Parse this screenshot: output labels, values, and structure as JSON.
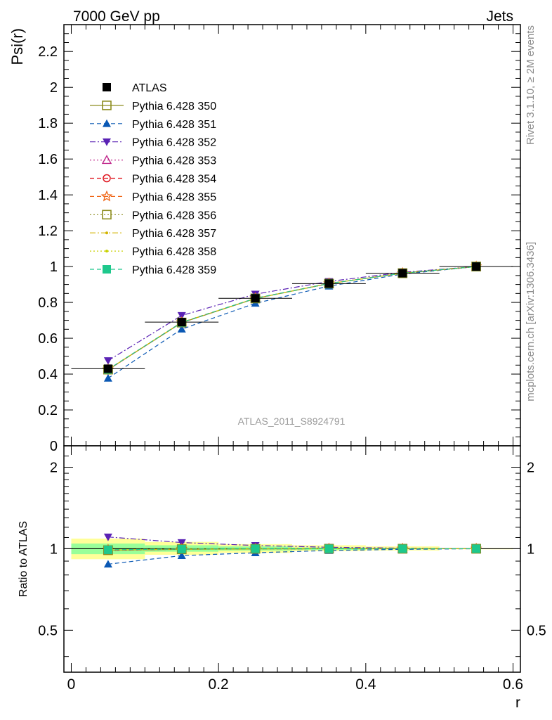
{
  "header": {
    "left": "7000 GeV pp",
    "right": "Jets"
  },
  "side_text": {
    "top": "Rivet 3.1.10, ≥ 2M events",
    "bottom": "mcplots.cern.ch [arXiv:1306.3436]"
  },
  "chart_data": [
    {
      "type": "line",
      "ylabel": "Psi(r)",
      "xlabel": "r",
      "analysis_label": "ATLAS_2011_S8924791",
      "xlim": [
        -0.01,
        0.61
      ],
      "ylim": [
        0,
        2.35
      ],
      "xticks": [
        "0",
        "0.2",
        "0.4",
        "0.6"
      ],
      "yticks": [
        "0",
        "0.2",
        "0.4",
        "0.6",
        "0.8",
        "1",
        "1.2",
        "1.4",
        "1.6",
        "1.8",
        "2",
        "2.2"
      ],
      "x": [
        0.05,
        0.15,
        0.25,
        0.35,
        0.45,
        0.55
      ],
      "series": [
        {
          "name": "ATLAS",
          "color": "#000000",
          "marker": "filled-square",
          "values": [
            0.43,
            0.69,
            0.823,
            0.905,
            0.963,
            1.0
          ]
        },
        {
          "name": "Pythia 6.428 350",
          "color": "#8c8c1e",
          "marker": "open-square",
          "dash": "solid",
          "values": [
            0.425,
            0.687,
            0.822,
            0.905,
            0.963,
            1.0
          ]
        },
        {
          "name": "Pythia 6.428 351",
          "color": "#0a58b4",
          "marker": "triangle-up",
          "dash": "dashed",
          "values": [
            0.377,
            0.651,
            0.795,
            0.891,
            0.958,
            1.0
          ]
        },
        {
          "name": "Pythia 6.428 352",
          "color": "#5a22b4",
          "marker": "triangle-down",
          "dash": "dashdot",
          "values": [
            0.475,
            0.727,
            0.846,
            0.917,
            0.968,
            1.0
          ]
        },
        {
          "name": "Pythia 6.428 353",
          "color": "#c0288c",
          "marker": "open-triangle",
          "dash": "dotted",
          "values": [
            0.424,
            0.687,
            0.822,
            0.905,
            0.963,
            1.0
          ]
        },
        {
          "name": "Pythia 6.428 354",
          "color": "#e0141e",
          "marker": "open-circle",
          "dash": "dashed",
          "values": [
            0.424,
            0.688,
            0.822,
            0.905,
            0.963,
            1.0
          ]
        },
        {
          "name": "Pythia 6.428 355",
          "color": "#f06414",
          "marker": "open-star",
          "dash": "dashed",
          "values": [
            0.426,
            0.689,
            0.823,
            0.906,
            0.963,
            1.0
          ]
        },
        {
          "name": "Pythia 6.428 356",
          "color": "#8c8c1e",
          "marker": "open-square",
          "dash": "dotted",
          "values": [
            0.425,
            0.688,
            0.822,
            0.905,
            0.963,
            1.0
          ]
        },
        {
          "name": "Pythia 6.428 357",
          "color": "#d2b400",
          "marker": "small-dot",
          "dash": "dashdot",
          "values": [
            0.425,
            0.688,
            0.822,
            0.905,
            0.963,
            1.0
          ]
        },
        {
          "name": "Pythia 6.428 358",
          "color": "#c8d200",
          "marker": "small-dot",
          "dash": "dotted",
          "values": [
            0.426,
            0.688,
            0.822,
            0.905,
            0.963,
            1.0
          ]
        },
        {
          "name": "Pythia 6.428 359",
          "color": "#1ec88c",
          "marker": "filled-square",
          "dash": "dashed",
          "values": [
            0.426,
            0.688,
            0.823,
            0.905,
            0.963,
            1.0
          ]
        }
      ]
    },
    {
      "type": "line",
      "ylabel": "Ratio to ATLAS",
      "xlabel": "r",
      "ylog": true,
      "ylim": [
        0.35,
        2.4
      ],
      "xlim": [
        -0.01,
        0.61
      ],
      "yticks": [
        "0.5",
        "1",
        "2"
      ],
      "x": [
        0.05,
        0.15,
        0.25,
        0.35,
        0.45,
        0.55
      ],
      "bins": [
        [
          0.0,
          0.1
        ],
        [
          0.1,
          0.2
        ],
        [
          0.2,
          0.3
        ],
        [
          0.3,
          0.4
        ],
        [
          0.4,
          0.5
        ],
        [
          0.5,
          0.6
        ]
      ],
      "uncertainty": {
        "total": [
          [
            0.915,
            1.09
          ],
          [
            0.95,
            1.06
          ],
          [
            0.965,
            1.04
          ],
          [
            0.98,
            1.03
          ],
          [
            0.985,
            1.02
          ],
          [
            0.995,
            1.005
          ]
        ],
        "stat": [
          [
            0.955,
            1.045
          ],
          [
            0.975,
            1.03
          ],
          [
            0.985,
            1.02
          ],
          [
            0.99,
            1.01
          ],
          [
            0.995,
            1.005
          ],
          [
            0.998,
            1.002
          ]
        ],
        "total_color": "#ffff99",
        "stat_color": "#99ff99"
      },
      "series": [
        {
          "name": "Pythia 6.428 350",
          "values": [
            0.988,
            0.995,
            0.999,
            1.0,
            1.0,
            1.0
          ]
        },
        {
          "name": "Pythia 6.428 351",
          "values": [
            0.877,
            0.943,
            0.966,
            0.985,
            0.995,
            1.0
          ]
        },
        {
          "name": "Pythia 6.428 352",
          "values": [
            1.105,
            1.054,
            1.028,
            1.013,
            1.005,
            1.0
          ]
        },
        {
          "name": "Pythia 6.428 353",
          "values": [
            0.986,
            0.996,
            0.999,
            1.0,
            1.0,
            1.0
          ]
        },
        {
          "name": "Pythia 6.428 354",
          "values": [
            0.986,
            0.997,
            0.999,
            1.0,
            1.0,
            1.0
          ]
        },
        {
          "name": "Pythia 6.428 355",
          "values": [
            0.991,
            0.998,
            1.0,
            1.001,
            1.0,
            1.0
          ]
        },
        {
          "name": "Pythia 6.428 356",
          "values": [
            0.988,
            0.997,
            0.999,
            1.0,
            1.0,
            1.0
          ]
        },
        {
          "name": "Pythia 6.428 357",
          "values": [
            0.988,
            0.997,
            0.999,
            1.0,
            1.0,
            1.0
          ]
        },
        {
          "name": "Pythia 6.428 358",
          "values": [
            0.991,
            0.997,
            0.999,
            1.0,
            1.0,
            1.0
          ]
        },
        {
          "name": "Pythia 6.428 359",
          "values": [
            0.991,
            0.997,
            1.0,
            1.0,
            1.0,
            1.0
          ]
        }
      ]
    }
  ]
}
